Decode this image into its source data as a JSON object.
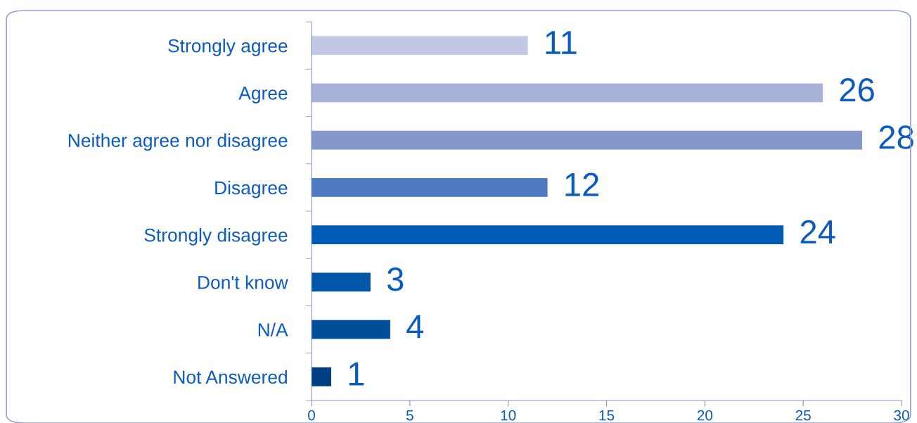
{
  "chart_data": {
    "type": "bar",
    "orientation": "horizontal",
    "categories": [
      "Strongly agree",
      "Agree",
      "Neither agree nor disagree",
      "Disagree",
      "Strongly disagree",
      "Don't know",
      "N/A",
      "Not Answered"
    ],
    "values": [
      11,
      26,
      28,
      12,
      24,
      3,
      4,
      1
    ],
    "colors": [
      "#c1c8e4",
      "#a7b1d8",
      "#8697cc",
      "#4f79c0",
      "#005bb5",
      "#0057a8",
      "#004d98",
      "#003f82"
    ],
    "xlim": [
      0,
      30
    ],
    "xticks": [
      0,
      5,
      10,
      15,
      20,
      25,
      30
    ],
    "data_labels": true,
    "grid": false,
    "legend": false
  }
}
